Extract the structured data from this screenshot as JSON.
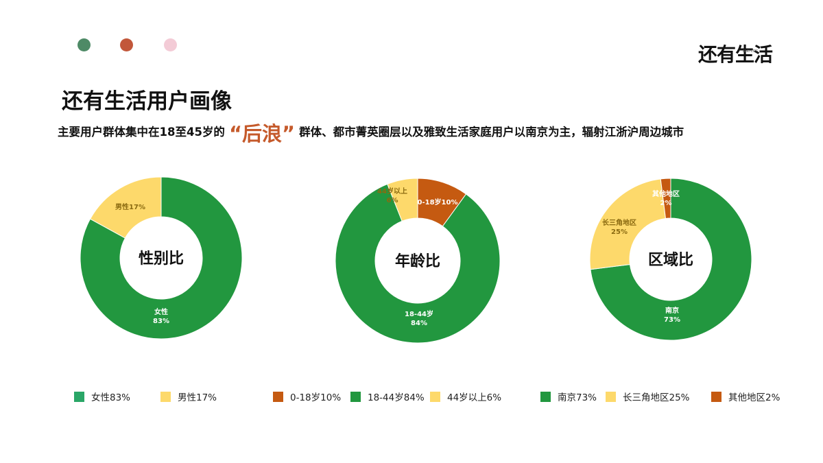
{
  "header": {
    "dot_colors": [
      "#4e8a66",
      "#c2573a",
      "#f3cbd6"
    ],
    "logo_text": "还有生活",
    "logo_sub": "AND LIFE",
    "title": "还有生活用户画像",
    "subtitle_pre": "主要用户群体集中在18至45岁的",
    "subtitle_highlight": "“后浪”",
    "subtitle_post": "群体、都市菁英圈层以及雅致生活家庭用户以南京为主，辐射江浙沪周边城市"
  },
  "chart_data": [
    {
      "type": "pie",
      "title": "性别比",
      "slices": [
        {
          "label": "女性",
          "value": 83,
          "pct_text": "83%",
          "color": "#22973f",
          "legend": "女性83%",
          "legend_color": "#2aa667"
        },
        {
          "label": "男性",
          "value": 17,
          "pct_text": "17%",
          "color": "#fdd96b",
          "legend": "男性17%",
          "legend_color": "#fdd96b"
        }
      ]
    },
    {
      "type": "pie",
      "title": "年龄比",
      "slices": [
        {
          "label": "0-18岁",
          "value": 10,
          "pct_text": "10%",
          "color": "#c55a11",
          "legend": "0-18岁10%",
          "legend_color": "#c55a11"
        },
        {
          "label": "18-44岁",
          "value": 84,
          "pct_text": "84%",
          "color": "#22973f",
          "legend": "18-44岁84%",
          "legend_color": "#22973f"
        },
        {
          "label": "44岁以上",
          "value": 6,
          "pct_text": "6%",
          "color": "#fdd96b",
          "legend": "44岁以上6%",
          "legend_color": "#fdd96b"
        }
      ]
    },
    {
      "type": "pie",
      "title": "区域比",
      "slices": [
        {
          "label": "南京",
          "value": 73,
          "pct_text": "73%",
          "color": "#22973f",
          "legend": "南京73%",
          "legend_color": "#22973f"
        },
        {
          "label": "长三角地区",
          "value": 25,
          "pct_text": "25%",
          "color": "#fdd96b",
          "legend": "长三角地区25%",
          "legend_color": "#fdd96b"
        },
        {
          "label": "其他地区",
          "value": 2,
          "pct_text": "2%",
          "color": "#c55a11",
          "legend": "其他地区2%",
          "legend_color": "#c55a11"
        }
      ]
    }
  ]
}
